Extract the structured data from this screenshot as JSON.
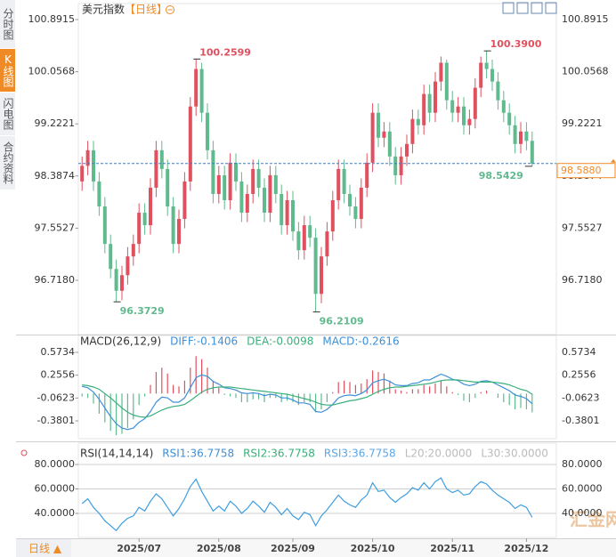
{
  "chart_data": {
    "type": "candlestick",
    "title": "美元指数",
    "period": "【日线】",
    "sidebar": [
      "分时图",
      "K线图",
      "闪电图",
      "合约资料"
    ],
    "bottom_tab": "日线 ▲",
    "watermark": "汇金网",
    "up_color": "#e0505f",
    "down_color": "#5fba8e",
    "open": [
      98.3,
      98.55,
      98.8,
      98.3,
      97.9,
      97.3,
      96.9,
      96.55,
      96.8,
      97.1,
      97.3,
      97.8,
      97.6,
      98.2,
      98.8,
      98.5,
      97.9,
      97.3,
      97.7,
      98.3,
      99.5,
      100.1,
      99.4,
      98.8,
      98.1,
      98.4,
      98.0,
      98.6,
      98.3,
      97.8,
      98.1,
      98.5,
      98.2,
      97.8,
      98.4,
      98.1,
      97.6,
      98.0,
      97.5,
      97.2,
      97.6,
      97.4,
      96.5,
      97.1,
      97.5,
      98.0,
      98.5,
      98.1,
      97.9,
      97.7,
      98.2,
      98.6,
      99.4,
      99.0,
      99.1,
      98.7,
      98.4,
      98.7,
      98.9,
      99.3,
      99.2,
      99.7,
      99.4,
      99.9,
      100.2,
      99.6,
      99.4,
      99.5,
      99.2,
      99.3,
      99.8,
      100.2,
      100.1,
      99.9,
      99.6,
      99.4,
      99.2,
      98.9,
      99.1,
      98.95
    ],
    "high": [
      98.7,
      98.95,
      98.95,
      98.45,
      98.05,
      97.45,
      97.05,
      96.95,
      97.25,
      97.45,
      97.95,
      97.95,
      98.35,
      98.95,
      98.95,
      98.65,
      98.05,
      97.85,
      98.45,
      99.65,
      100.2599,
      100.2,
      99.55,
      98.95,
      98.55,
      98.55,
      98.75,
      98.75,
      98.45,
      98.25,
      98.65,
      98.65,
      98.35,
      98.55,
      98.55,
      98.25,
      98.15,
      98.15,
      97.65,
      97.75,
      97.75,
      97.55,
      97.25,
      97.65,
      98.15,
      98.65,
      98.65,
      98.25,
      98.05,
      98.35,
      98.75,
      99.55,
      99.55,
      99.25,
      99.25,
      98.85,
      98.85,
      99.05,
      99.45,
      99.45,
      99.85,
      99.85,
      100.05,
      100.3,
      100.25,
      99.75,
      99.65,
      99.65,
      99.45,
      99.95,
      100.3,
      100.39,
      100.25,
      100.05,
      99.75,
      99.55,
      99.35,
      99.25,
      99.25,
      99.1
    ],
    "low": [
      98.15,
      98.4,
      98.15,
      97.75,
      97.15,
      96.75,
      96.3729,
      96.4,
      96.65,
      96.95,
      97.15,
      97.45,
      97.45,
      98.05,
      98.35,
      97.75,
      97.15,
      97.15,
      97.55,
      98.15,
      99.35,
      99.25,
      98.65,
      97.95,
      97.95,
      97.85,
      97.85,
      98.15,
      97.65,
      97.65,
      97.95,
      98.05,
      97.65,
      97.65,
      97.95,
      97.45,
      97.45,
      97.35,
      97.05,
      97.05,
      97.25,
      96.2109,
      96.35,
      96.95,
      97.35,
      97.85,
      97.95,
      97.75,
      97.55,
      97.55,
      98.05,
      98.45,
      98.85,
      98.85,
      98.55,
      98.25,
      98.25,
      98.55,
      98.75,
      99.05,
      99.05,
      99.25,
      99.25,
      99.75,
      99.45,
      99.25,
      99.25,
      99.05,
      99.05,
      99.15,
      99.65,
      99.95,
      99.75,
      99.45,
      99.25,
      99.05,
      98.75,
      98.75,
      98.8,
      98.5429
    ],
    "close": [
      98.55,
      98.8,
      98.3,
      97.9,
      97.3,
      96.9,
      96.55,
      96.8,
      97.1,
      97.3,
      97.8,
      97.6,
      98.2,
      98.8,
      98.5,
      97.9,
      97.3,
      97.7,
      98.3,
      99.5,
      100.1,
      99.4,
      98.8,
      98.1,
      98.4,
      98.0,
      98.6,
      98.3,
      97.8,
      98.1,
      98.5,
      98.2,
      97.8,
      98.4,
      98.1,
      97.6,
      98.0,
      97.5,
      97.2,
      97.6,
      97.4,
      96.5,
      97.1,
      97.5,
      98.0,
      98.5,
      98.1,
      97.9,
      97.7,
      98.2,
      98.6,
      99.4,
      99.0,
      99.1,
      98.7,
      98.4,
      98.7,
      98.9,
      99.3,
      99.2,
      99.7,
      99.4,
      99.9,
      100.2,
      99.6,
      99.4,
      99.5,
      99.2,
      99.3,
      99.8,
      100.2,
      100.1,
      99.9,
      99.6,
      99.4,
      99.2,
      98.9,
      99.1,
      98.95,
      98.588
    ],
    "ylim": [
      95.8634,
      101.1336
    ],
    "yticks": [
      100.8915,
      100.0568,
      99.2221,
      98.3874,
      97.5527,
      {
        "value": 96.718,
        "label": "96.7180"
      }
    ],
    "last_price": {
      "value": 98.588,
      "label": "98.5880"
    },
    "annotations": [
      {
        "value": 100.2599,
        "label": "100.2599"
      },
      {
        "value": 100.39,
        "label": "100.3900"
      },
      {
        "value": 96.3729,
        "label": "96.3729"
      },
      {
        "value": 96.2109,
        "label": "96.2109"
      },
      {
        "value": 98.5429,
        "label": "98.5429"
      }
    ],
    "xticks": [
      {
        "value": 10,
        "label": "2025/07"
      },
      {
        "value": 24,
        "label": "2025/08"
      },
      {
        "value": 37,
        "label": "2025/09"
      },
      {
        "value": 51,
        "label": "2025/10"
      },
      {
        "value": 65,
        "label": "2025/11"
      },
      {
        "value": 78,
        "label": "2025/12"
      }
    ],
    "macd": {
      "legend": [
        {
          "text": "MACD(26,12,9)",
          "color": "#333333"
        },
        {
          "text": "DIFF:-0.1406",
          "color": "#3d8fd8"
        },
        {
          "text": "DEA:-0.0098",
          "color": "#3aaf7c"
        },
        {
          "text": "MACD:-0.2616",
          "color": "#3d8fd8"
        }
      ],
      "diff_color": "#3d8fd8",
      "dea_color": "#3aaf7c",
      "diff": [
        0.1,
        0.08,
        0.02,
        -0.08,
        -0.2,
        -0.32,
        -0.42,
        -0.48,
        -0.5,
        -0.48,
        -0.4,
        -0.35,
        -0.25,
        -0.12,
        -0.05,
        -0.06,
        -0.12,
        -0.12,
        -0.06,
        0.08,
        0.22,
        0.26,
        0.24,
        0.17,
        0.13,
        0.08,
        0.07,
        0.05,
        0.01,
        0.0,
        0.01,
        0.0,
        -0.03,
        -0.01,
        -0.02,
        -0.06,
        -0.06,
        -0.09,
        -0.13,
        -0.13,
        -0.15,
        -0.25,
        -0.26,
        -0.22,
        -0.15,
        -0.06,
        -0.03,
        -0.02,
        -0.03,
        0.0,
        0.05,
        0.15,
        0.18,
        0.2,
        0.17,
        0.12,
        0.11,
        0.11,
        0.14,
        0.15,
        0.19,
        0.19,
        0.23,
        0.27,
        0.24,
        0.2,
        0.18,
        0.13,
        0.11,
        0.13,
        0.17,
        0.18,
        0.16,
        0.12,
        0.08,
        0.04,
        -0.02,
        -0.04,
        -0.07,
        -0.1406
      ],
      "dea": [
        0.12,
        0.11,
        0.09,
        0.06,
        0.0,
        -0.06,
        -0.13,
        -0.2,
        -0.26,
        -0.3,
        -0.32,
        -0.33,
        -0.31,
        -0.27,
        -0.23,
        -0.2,
        -0.18,
        -0.17,
        -0.15,
        -0.1,
        -0.04,
        0.02,
        0.06,
        0.08,
        0.09,
        0.09,
        0.09,
        0.08,
        0.07,
        0.06,
        0.05,
        0.04,
        0.03,
        0.02,
        0.01,
        0.0,
        -0.01,
        -0.03,
        -0.05,
        -0.07,
        -0.09,
        -0.12,
        -0.15,
        -0.16,
        -0.16,
        -0.14,
        -0.12,
        -0.1,
        -0.09,
        -0.07,
        -0.05,
        -0.01,
        0.03,
        0.06,
        0.08,
        0.09,
        0.09,
        0.1,
        0.11,
        0.12,
        0.13,
        0.14,
        0.16,
        0.18,
        0.19,
        0.19,
        0.19,
        0.18,
        0.17,
        0.16,
        0.16,
        0.16,
        0.16,
        0.15,
        0.14,
        0.12,
        0.09,
        0.06,
        0.04,
        -0.0098
      ],
      "hist": [
        -0.04,
        -0.06,
        -0.14,
        -0.28,
        -0.4,
        -0.52,
        -0.58,
        -0.56,
        -0.48,
        -0.36,
        -0.16,
        -0.04,
        0.12,
        0.3,
        0.36,
        0.28,
        0.12,
        0.1,
        0.18,
        0.36,
        0.52,
        0.48,
        0.36,
        0.18,
        0.08,
        -0.02,
        -0.04,
        -0.06,
        -0.12,
        -0.12,
        -0.08,
        -0.08,
        -0.12,
        -0.06,
        -0.06,
        -0.12,
        -0.1,
        -0.12,
        -0.16,
        -0.12,
        -0.12,
        -0.26,
        -0.22,
        -0.12,
        0.02,
        0.16,
        0.18,
        0.16,
        0.12,
        0.14,
        0.2,
        0.32,
        0.3,
        0.28,
        0.18,
        0.06,
        0.04,
        0.02,
        0.06,
        0.06,
        0.12,
        0.1,
        0.14,
        0.18,
        0.1,
        0.02,
        -0.02,
        -0.1,
        -0.12,
        -0.06,
        0.02,
        0.04,
        0,
        -0.06,
        -0.12,
        -0.16,
        -0.22,
        -0.2,
        -0.22,
        -0.2616
      ],
      "ylim": [
        -0.6151,
        0.8084
      ],
      "yticks": [
        0.5734,
        0.2556,
        -0.0623,
        -0.3801
      ]
    },
    "rsi": {
      "legend": [
        {
          "text": "RSI(14,14,14)",
          "color": "#333333"
        },
        {
          "text": "RSI1:36.7758",
          "color": "#3d8fd8"
        },
        {
          "text": "RSI2:36.7758",
          "color": "#3aaf7c"
        },
        {
          "text": "RSI3:36.7758",
          "color": "#5aa6e6"
        },
        {
          "text": "L20:20.0000",
          "color": "#bbbbbb"
        },
        {
          "text": "L30:30.0000",
          "color": "#bbbbbb"
        }
      ],
      "color": "#3d9ee0",
      "values": [
        48,
        52,
        45,
        40,
        34,
        30,
        26,
        32,
        36,
        38,
        45,
        42,
        50,
        56,
        52,
        45,
        38,
        44,
        52,
        62,
        68,
        58,
        50,
        42,
        46,
        42,
        50,
        46,
        40,
        44,
        50,
        46,
        41,
        49,
        45,
        39,
        44,
        38,
        35,
        41,
        39,
        30,
        38,
        43,
        49,
        55,
        50,
        47,
        45,
        51,
        55,
        65,
        58,
        59,
        53,
        49,
        53,
        56,
        61,
        59,
        65,
        60,
        66,
        69,
        60,
        57,
        59,
        55,
        56,
        62,
        66,
        64,
        59,
        55,
        52,
        49,
        44,
        47,
        45,
        36.7758
      ],
      "ylim": [
        23.3,
        96
      ],
      "yticks": [
        {
          "value": 80,
          "label": "80.0000"
        },
        {
          "value": 60,
          "label": "60.0000"
        },
        {
          "value": 40,
          "label": "40.0000"
        }
      ]
    }
  }
}
